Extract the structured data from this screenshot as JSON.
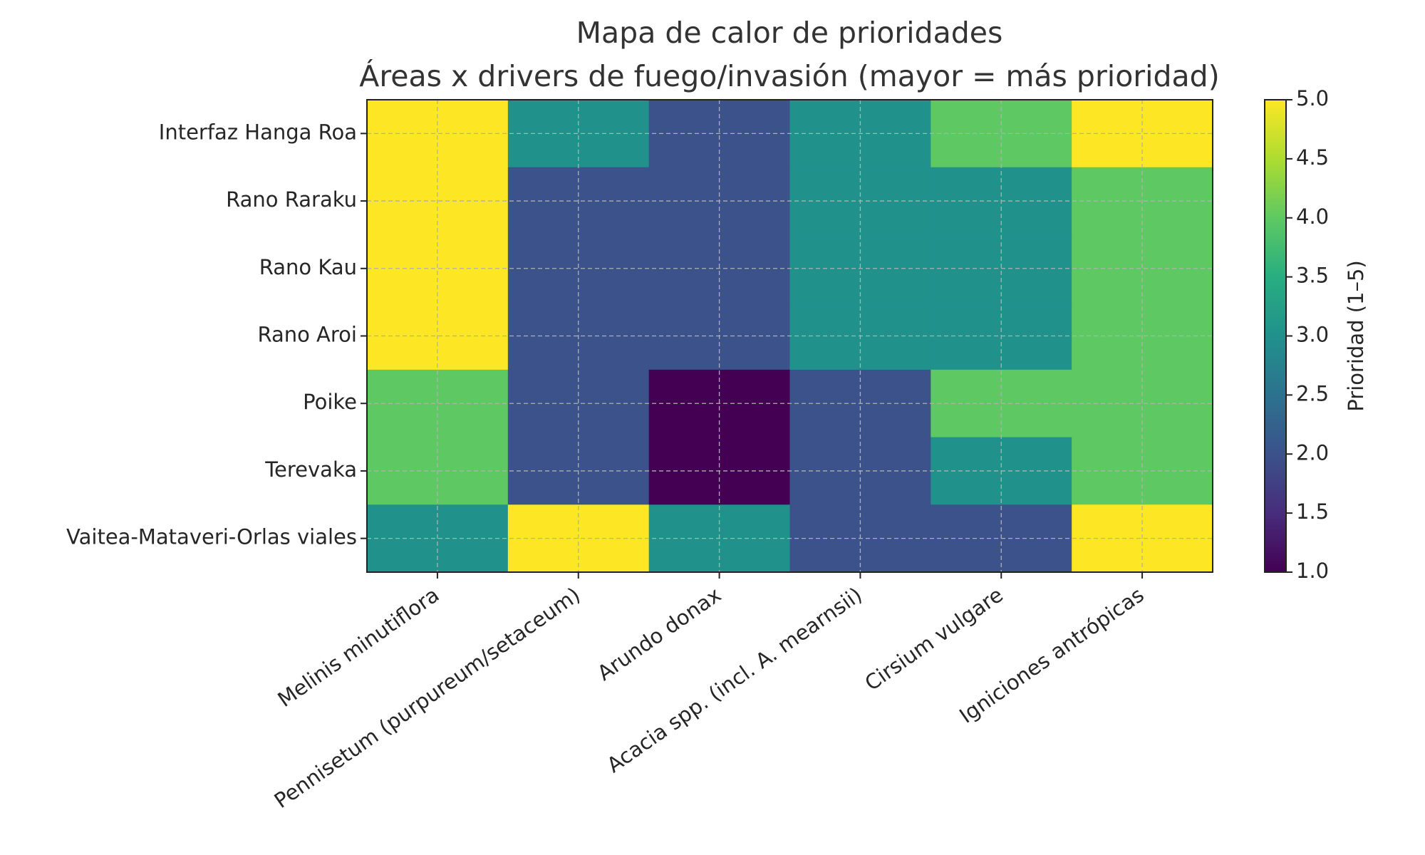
{
  "chart_data": {
    "type": "heatmap",
    "title": "Mapa de calor de prioridades",
    "subtitle": "Áreas x drivers de fuego/invasión (mayor = más prioridad)",
    "x_categories": [
      "Melinis minutiflora",
      "Pennisetum (purpureum/setaceum)",
      "Arundo donax",
      "Acacia spp. (incl. A. mearnsii)",
      "Cirsium vulgare",
      "Igniciones antrópicas"
    ],
    "y_categories": [
      "Interfaz Hanga Roa",
      "Rano Raraku",
      "Rano Kau",
      "Rano Aroi",
      "Poike",
      "Terevaka",
      "Vaitea-Mataveri-Orlas viales"
    ],
    "values": [
      [
        5,
        3,
        2,
        3,
        4,
        5
      ],
      [
        5,
        2,
        2,
        3,
        3,
        4
      ],
      [
        5,
        2,
        2,
        3,
        3,
        4
      ],
      [
        5,
        2,
        2,
        3,
        3,
        4
      ],
      [
        4,
        2,
        1,
        2,
        4,
        4
      ],
      [
        4,
        2,
        1,
        2,
        3,
        4
      ],
      [
        3,
        5,
        3,
        2,
        2,
        5
      ]
    ],
    "colormap": "viridis",
    "colorbar_label": "Prioridad (1–5)",
    "clim": [
      1,
      5
    ],
    "cticks": [
      {
        "value": 1,
        "label": "1.0"
      },
      {
        "value": 1.5,
        "label": "1.5"
      },
      {
        "value": 2,
        "label": "2.0"
      },
      {
        "value": 2.5,
        "label": "2.5"
      },
      {
        "value": 3,
        "label": "3.0"
      },
      {
        "value": 3.5,
        "label": "3.5"
      },
      {
        "value": 4,
        "label": "4.0"
      },
      {
        "value": 4.5,
        "label": "4.5"
      },
      {
        "value": 5,
        "label": "5.0"
      }
    ],
    "grid": true
  }
}
